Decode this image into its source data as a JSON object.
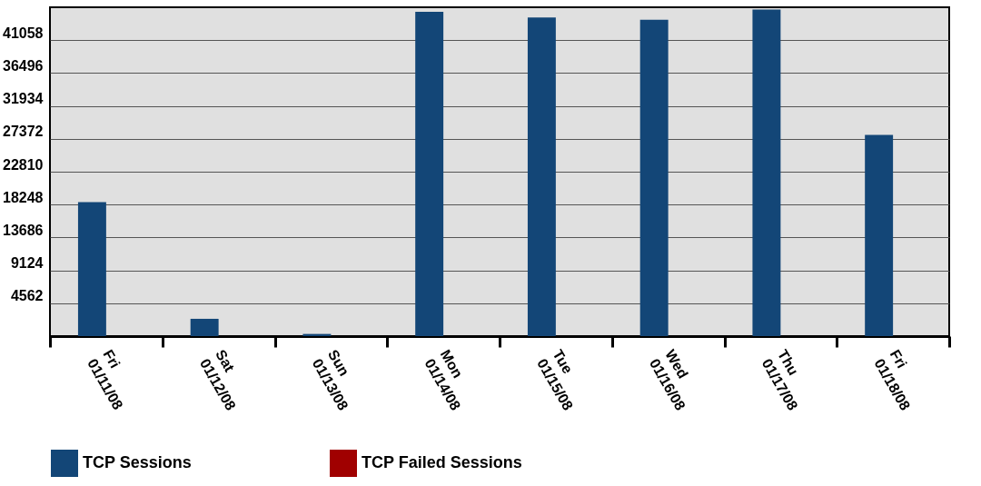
{
  "chart_data": {
    "type": "bar",
    "categories": [
      "Fri\n01/11/08",
      "Sat\n01/12/08",
      "Sun\n01/13/08",
      "Mon\n01/14/08",
      "Tue\n01/15/08",
      "Wed\n01/16/08",
      "Thu\n01/17/08",
      "Fri\n01/18/08"
    ],
    "series": [
      {
        "name": "TCP Sessions",
        "color": "#134677",
        "values": [
          18600,
          2400,
          300,
          45000,
          44200,
          43900,
          45300,
          27900
        ]
      },
      {
        "name": "TCP Failed Sessions",
        "color": "#a00000",
        "values": [
          0,
          0,
          0,
          0,
          0,
          0,
          0,
          0
        ]
      }
    ],
    "ylim": [
      0,
      45620
    ],
    "yticks": [
      4562,
      9124,
      13686,
      18248,
      22810,
      27372,
      31934,
      36496,
      41058
    ],
    "grid": "y",
    "legend": "bottom"
  }
}
